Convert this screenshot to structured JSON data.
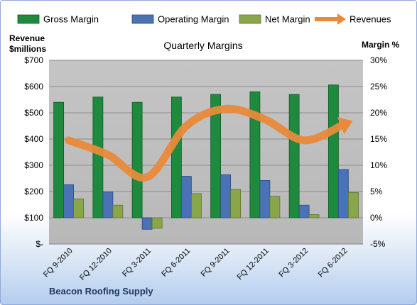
{
  "chart_data": {
    "type": "bar",
    "title": "Quarterly Margins",
    "left_axis_label": [
      "Revenue",
      "$millions"
    ],
    "right_axis_label": "Margin %",
    "footer": "Beacon Roofing Supply",
    "categories": [
      "FQ 9-2010",
      "FQ 12-2010",
      "FQ 3-2011",
      "FQ 6-2011",
      "FQ 9-2011",
      "FQ 12-2011",
      "FQ 3-2012",
      "FQ 6-2012"
    ],
    "left_axis": {
      "min": 0,
      "max": 700,
      "step": 100,
      "ticks": [
        "$-",
        "$100",
        "$200",
        "$300",
        "$400",
        "$500",
        "$600",
        "$700"
      ]
    },
    "right_axis": {
      "min": -5,
      "max": 30,
      "step": 5,
      "ticks": [
        "-5%",
        "0%",
        "5%",
        "10%",
        "15%",
        "20%",
        "25%",
        "30%"
      ]
    },
    "series": [
      {
        "name": "Gross Margin",
        "type": "bar",
        "axis": "right",
        "color": "#1e8a3e",
        "values": [
          22,
          23,
          22,
          23,
          23.5,
          24,
          23.5,
          25.3
        ]
      },
      {
        "name": "Operating Margin",
        "type": "bar",
        "axis": "right",
        "color": "#4a72b5",
        "values": [
          6.3,
          4.9,
          -2.2,
          7.9,
          8.2,
          7.1,
          2.4,
          9.2
        ]
      },
      {
        "name": "Net Margin",
        "type": "bar",
        "axis": "right",
        "color": "#8aa64a",
        "values": [
          3.6,
          2.4,
          -2.0,
          4.6,
          5.4,
          4.1,
          0.6,
          4.8
        ]
      },
      {
        "name": "Revenues",
        "type": "line",
        "axis": "left",
        "color": "#e98a3b",
        "values": [
          395,
          340,
          255,
          450,
          515,
          475,
          395,
          455
        ]
      }
    ],
    "grid": true,
    "legend_position": "top"
  }
}
